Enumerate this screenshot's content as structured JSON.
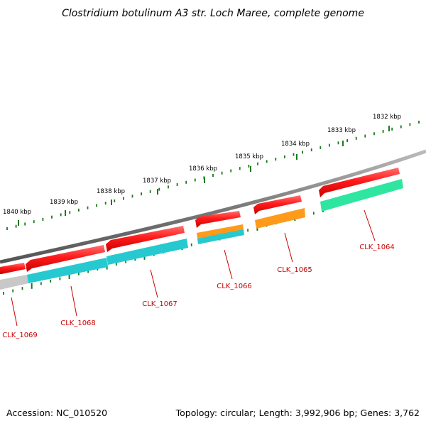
{
  "title": "Clostridium botulinum A3 str. Loch Maree, complete genome",
  "footer": {
    "accession": "Accession: NC_010520",
    "topology": "Topology: circular; Length: 3,992,906 bp; Genes: 3,762"
  },
  "ruler": {
    "ticks": [
      "1840 kbp",
      "1839 kbp",
      "1838 kbp",
      "1837 kbp",
      "1836 kbp",
      "1835 kbp",
      "1834 kbp",
      "1833 kbp",
      "1832 kbp"
    ]
  },
  "genes": [
    {
      "label": "CLK_1069",
      "cds_color": "#c8c8c8"
    },
    {
      "label": "CLK_1068",
      "cds_color": "#26c9cf"
    },
    {
      "label": "CLK_1067",
      "cds_color": "#26c9cf"
    },
    {
      "label": "CLK_1066",
      "cds_color": "#ff9a1a",
      "cds2_color": "#26c9cf"
    },
    {
      "label": "CLK_1065",
      "cds_color": "#ff9a1a"
    },
    {
      "label": "CLK_1064",
      "cds_color": "#2ee6a0"
    }
  ],
  "colors": {
    "gene": "#ff1a1a",
    "label": "#cc0000",
    "backbone": "#888888",
    "tick": "#1a7a1a"
  }
}
